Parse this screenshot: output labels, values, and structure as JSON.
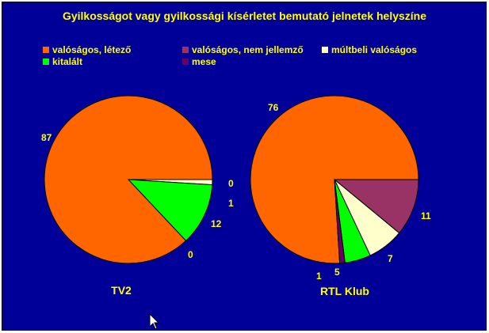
{
  "chart_data": {
    "type": "pie",
    "title": "Gyilkosságot vagy gyilkossági kísérletet bemutató jelnetek helyszíne",
    "legend": [
      {
        "label": "valóságos, létező",
        "color": "#ff6600"
      },
      {
        "label": "valóságos, nem jellemző",
        "color": "#993366"
      },
      {
        "label": "múltbeli valóságos",
        "color": "#ffffcc"
      },
      {
        "label": "kitalált",
        "color": "#00ff00"
      },
      {
        "label": "mese",
        "color": "#660066"
      }
    ],
    "pies": [
      {
        "name": "TV2",
        "slices": [
          {
            "category": "valóságos, létező",
            "value": 87,
            "label": "87"
          },
          {
            "category": "valóságos, nem jellemző",
            "value": 0,
            "label": "0"
          },
          {
            "category": "múltbeli valóságos",
            "value": 1,
            "label": "1"
          },
          {
            "category": "kitalált",
            "value": 12,
            "label": "12"
          },
          {
            "category": "mese",
            "value": 0,
            "label": "0"
          }
        ]
      },
      {
        "name": "RTL Klub",
        "slices": [
          {
            "category": "valóságos, létező",
            "value": 76,
            "label": "76"
          },
          {
            "category": "valóságos, nem jellemző",
            "value": 11,
            "label": "11"
          },
          {
            "category": "múltbeli valóságos",
            "value": 7,
            "label": "7"
          },
          {
            "category": "kitalált",
            "value": 5,
            "label": "5"
          },
          {
            "category": "mese",
            "value": 1,
            "label": "1"
          }
        ]
      }
    ]
  }
}
